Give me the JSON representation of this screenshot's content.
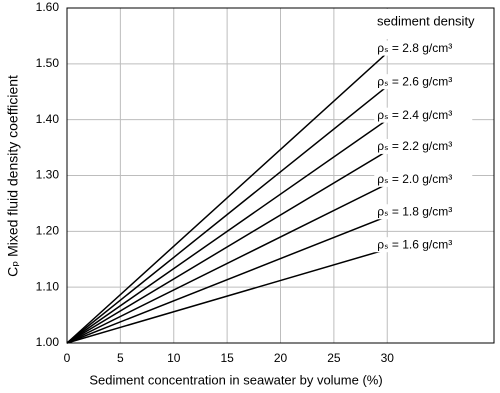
{
  "chart_data": {
    "type": "line",
    "x_label": "Sediment concentration in seawater by volume (%)",
    "y_label": "Cₚ  Mixed fluid density coefficient",
    "legend_title": "sediment density",
    "x": [
      0,
      30
    ],
    "series": [
      {
        "name": "ρₛ = 2.8 g/cm³",
        "color": "#000000",
        "values": [
          1.0,
          1.52
        ]
      },
      {
        "name": "ρₛ = 2.6 g/cm³",
        "color": "#000000",
        "values": [
          1.0,
          1.46
        ]
      },
      {
        "name": "ρₛ = 2.4 g/cm³",
        "color": "#000000",
        "values": [
          1.0,
          1.4
        ]
      },
      {
        "name": "ρₛ = 2.2 g/cm³",
        "color": "#000000",
        "values": [
          1.0,
          1.344
        ]
      },
      {
        "name": "ρₛ = 2.0 g/cm³",
        "color": "#000000",
        "values": [
          1.0,
          1.285
        ]
      },
      {
        "name": "ρₛ = 1.8 g/cm³",
        "color": "#000000",
        "values": [
          1.0,
          1.227
        ]
      },
      {
        "name": "ρₛ = 1.6 g/cm³",
        "color": "#000000",
        "values": [
          1.0,
          1.168
        ]
      }
    ],
    "xlim": [
      0,
      40
    ],
    "xticks": [
      0,
      5,
      10,
      15,
      20,
      25,
      30
    ],
    "ylim": [
      1.0,
      1.6
    ],
    "yticks": [
      {
        "value": 1.0,
        "label": "1.00"
      },
      {
        "value": 1.1,
        "label": "1.10"
      },
      {
        "value": 1.2,
        "label": "1.20"
      },
      {
        "value": 1.3,
        "label": "1.30"
      },
      {
        "value": 1.4,
        "label": "1.40"
      },
      {
        "value": 1.5,
        "label": "1.50"
      },
      {
        "value": 1.6,
        "label": "1.60"
      }
    ],
    "grid": true
  }
}
